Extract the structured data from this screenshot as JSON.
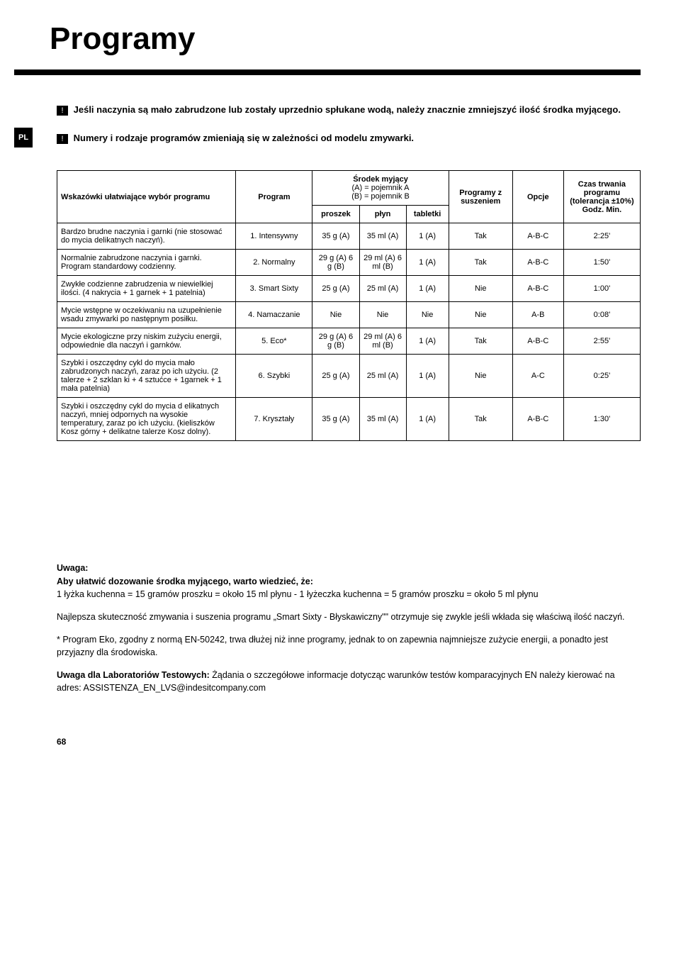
{
  "page": {
    "title": "Programy",
    "lang_tab": "PL",
    "page_number": "68"
  },
  "warnings": {
    "line1": "Jeśli naczynia są mało zabrudzone lub zostały uprzednio spłukane wodą, należy znacznie zmniejszyć ilość środka myjącego.",
    "line2": "Numery i rodzaje programów zmieniają się w zależności od modelu zmywarki."
  },
  "table": {
    "headers": {
      "c1": "Wskazówki ułatwiające wybór programu",
      "c2": "Program",
      "c3_top": "Środek myjący",
      "c3_sub1": "(A) = pojemnik A",
      "c3_sub2": "(B) = pojemnik B",
      "c3a": "proszek",
      "c3b": "płyn",
      "c3c": "tabletki",
      "c4": "Programy z suszeniem",
      "c5": "Opcje",
      "c6_top": "Czas trwania programu (tolerancja ±10%)",
      "c6_bottom": "Godz. Min."
    },
    "rows": [
      {
        "hint": "Bardzo brudne naczynia i garnki (nie stosować do mycia delikatnych naczyń).",
        "program": "1. Intensywny",
        "proszek": "35 g (A)",
        "plyn": "35 ml (A)",
        "tabletki": "1 (A)",
        "susz": "Tak",
        "opcje": "A-B-C",
        "czas": "2:25'"
      },
      {
        "hint": "Normalnie zabrudzone naczynia i garnki. Program standardowy codzienny.",
        "program": "2. Normalny",
        "proszek": "29 g (A) 6 g (B)",
        "plyn": "29 ml (A) 6 ml (B)",
        "tabletki": "1 (A)",
        "susz": "Tak",
        "opcje": "A-B-C",
        "czas": "1:50'"
      },
      {
        "hint": "Zwykłe codzienne zabrudzenia w niewielkiej ilości. (4 nakrycia + 1 garnek + 1 patelnia)",
        "program": "3. Smart Sixty",
        "proszek": "25 g (A)",
        "plyn": "25 ml (A)",
        "tabletki": "1 (A)",
        "susz": "Nie",
        "opcje": "A-B-C",
        "czas": "1:00'"
      },
      {
        "hint": "Mycie wstępne w oczekiwaniu na uzupełnienie wsadu zmywarki po następnym posiłku.",
        "program": "4. Namaczanie",
        "proszek": "Nie",
        "plyn": "Nie",
        "tabletki": "Nie",
        "susz": "Nie",
        "opcje": "A-B",
        "czas": "0:08'"
      },
      {
        "hint": "Mycie ekologiczne przy niskim zużyciu energii, odpowiednie dla naczyń i garnków.",
        "program": "5. Eco*",
        "proszek": "29 g (A) 6 g (B)",
        "plyn": "29 ml (A) 6 ml (B)",
        "tabletki": "1 (A)",
        "susz": "Tak",
        "opcje": "A-B-C",
        "czas": "2:55'"
      },
      {
        "hint": "Szybki i oszczędny cykl do mycia mało zabrudzonych naczyń, zaraz po ich użyciu. (2 talerze + 2 szklan ki + 4 sztućce + 1garnek + 1 mała patelnia)",
        "program": "6. Szybki",
        "proszek": "25 g (A)",
        "plyn": "25 ml (A)",
        "tabletki": "1 (A)",
        "susz": "Nie",
        "opcje": "A-C",
        "czas": "0:25'"
      },
      {
        "hint": "Szybki i oszczędny cykl do mycia d elikatnych naczyń, mniej odpornych na wysokie temperatury, zaraz po ich użyciu. (kieliszków Kosz górny + delikatne talerze Kosz dolny).",
        "program": "7. Kryształy",
        "proszek": "35 g (A)",
        "plyn": "35 ml (A)",
        "tabletki": "1 (A)",
        "susz": "Tak",
        "opcje": "A-B-C",
        "czas": "1:30'"
      }
    ]
  },
  "notes": {
    "uwaga_label": "Uwaga:",
    "dosing_label": "Aby ułatwić dozowanie środka myjącego, warto wiedzieć, że:",
    "dosing_text": "1 łyżka kuchenna = 15 gramów proszku = około 15 ml płynu - 1 łyżeczka kuchenna = 5 gramów proszku = około 5 ml płynu",
    "smart_text": "Najlepsza skuteczność zmywania i suszenia programu „Smart Sixty - Błyskawiczny\"\" otrzymuje się zwykle jeśli wkłada się właściwą ilość naczyń.",
    "eco_text": "* Program Eko, zgodny z normą EN-50242, trwa dłużej niż inne programy, jednak to on zapewnia najmniejsze zużycie energii, a ponadto jest przyjazny dla środowiska.",
    "lab_label": "Uwaga dla Laboratoriów Testowych:",
    "lab_text": " Żądania o szczegółowe informacje dotycząc warunków testów komparacyjnych EN należy kierować na adres: ASSISTENZA_EN_LVS@indesitcompany.com"
  }
}
